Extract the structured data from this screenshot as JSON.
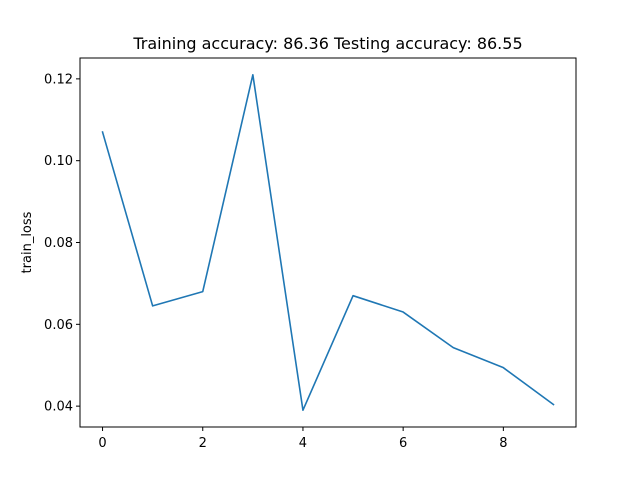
{
  "chart_data": {
    "type": "line",
    "title": "Training accuracy: 86.36 Testing accuracy: 86.55",
    "xlabel": "",
    "ylabel": "train_loss",
    "x": [
      0,
      1,
      2,
      3,
      4,
      5,
      6,
      7,
      8,
      9
    ],
    "series": [
      {
        "values": [
          0.107,
          0.0645,
          0.068,
          0.121,
          0.039,
          0.067,
          0.063,
          0.0543,
          0.0494,
          0.0404
        ],
        "color": "#1f77b4"
      }
    ],
    "xlim": [
      -0.45,
      9.45
    ],
    "ylim": [
      0.0349,
      0.1251
    ],
    "xticks": [
      0,
      2,
      4,
      6,
      8
    ],
    "xtick_labels": [
      "0",
      "2",
      "4",
      "6",
      "8"
    ],
    "yticks": [
      0.04,
      0.06,
      0.08,
      0.1,
      0.12
    ],
    "ytick_labels": [
      "0.04",
      "0.06",
      "0.08",
      "0.10",
      "0.12"
    ],
    "grid": false,
    "legend": false
  }
}
